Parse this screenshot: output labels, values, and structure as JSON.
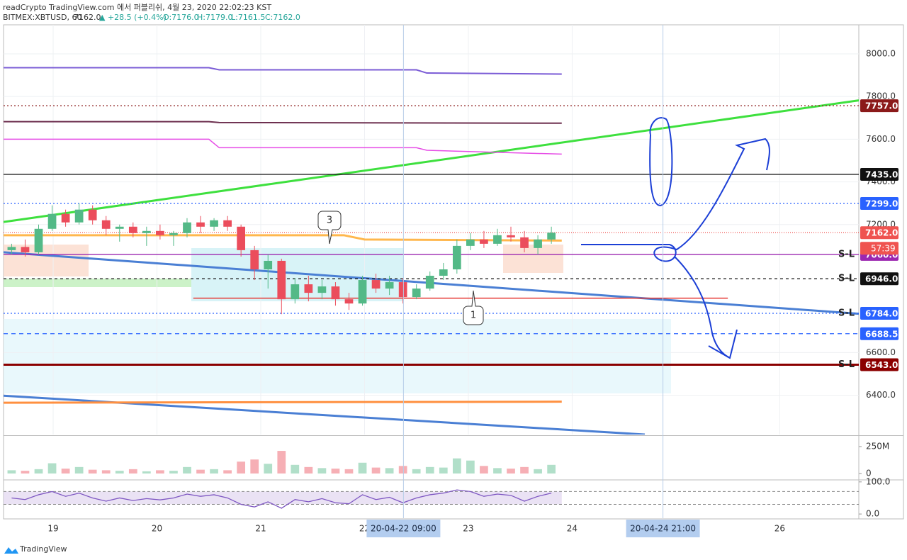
{
  "header": {
    "publisher": "readCrypto TradingView.com 에서 퍼블리쉬, 4월 23, 2020 22:02:23 KST",
    "symbol": "BITMEX:XBTUSD, 60",
    "last": "7162.0",
    "change": "▲ +28.5 (+0.4%)",
    "ohlc": [
      "O:7176.0",
      "H:7179.0",
      "L:7161.5",
      "C:7162.0"
    ]
  },
  "chart_data": {
    "type": "candlestick",
    "xlim": [
      18.522,
      26.762
    ],
    "xticks": [
      19,
      20,
      21,
      22,
      23,
      24,
      26
    ],
    "ylim": [
      6216,
      8136
    ],
    "yticks": [
      {
        "value": 8000,
        "label": "8000.0"
      },
      {
        "value": 7800,
        "label": "7800.0"
      },
      {
        "value": 7600,
        "label": "7600.0"
      },
      {
        "value": 7400,
        "label": "7400.0"
      },
      {
        "value": 7200,
        "label": "7200.0"
      },
      {
        "value": 6600,
        "label": "6600.0"
      },
      {
        "value": 6400,
        "label": "6400.0"
      }
    ],
    "grid": true,
    "up_color": "#53b987",
    "down_color": "#eb4d5c",
    "x": [
      18.6,
      18.73,
      18.86,
      18.99,
      19.12,
      19.25,
      19.38,
      19.51,
      19.64,
      19.77,
      19.9,
      20.03,
      20.16,
      20.29,
      20.42,
      20.55,
      20.68,
      20.81,
      20.94,
      21.07,
      21.2,
      21.33,
      21.46,
      21.59,
      21.72,
      21.85,
      21.98,
      22.11,
      22.24,
      22.37,
      22.5,
      22.63,
      22.76,
      22.89,
      23.02,
      23.15,
      23.28,
      23.41,
      23.54,
      23.67,
      23.8
    ],
    "open": [
      7080,
      7095,
      7070,
      7180,
      7250,
      7210,
      7270,
      7220,
      7180,
      7190,
      7160,
      7170,
      7150,
      7160,
      7210,
      7190,
      7220,
      7190,
      7080,
      6990,
      7030,
      6850,
      6920,
      6880,
      6910,
      6850,
      6830,
      6940,
      6900,
      6930,
      6860,
      6900,
      6960,
      6990,
      7100,
      7130,
      7110,
      7150,
      7140,
      7090,
      7130
    ],
    "high": [
      7110,
      7130,
      7200,
      7290,
      7270,
      7300,
      7290,
      7240,
      7200,
      7210,
      7190,
      7200,
      7170,
      7230,
      7240,
      7230,
      7240,
      7200,
      7100,
      7060,
      7040,
      6950,
      6960,
      6940,
      6930,
      6880,
      6960,
      6970,
      6960,
      6950,
      6920,
      6980,
      7020,
      7130,
      7160,
      7170,
      7180,
      7190,
      7170,
      7150,
      7190
    ],
    "low": [
      7060,
      7050,
      7060,
      7170,
      7190,
      7200,
      7200,
      7150,
      7120,
      7140,
      7100,
      7130,
      7100,
      7140,
      7160,
      7170,
      7170,
      7050,
      6940,
      6900,
      6780,
      6830,
      6840,
      6850,
      6820,
      6800,
      6820,
      6880,
      6870,
      6830,
      6850,
      6890,
      6940,
      6970,
      7080,
      7090,
      7100,
      7120,
      7070,
      7060,
      7110
    ],
    "close": [
      7095,
      7070,
      7180,
      7250,
      7210,
      7270,
      7220,
      7180,
      7190,
      7160,
      7170,
      7150,
      7160,
      7210,
      7190,
      7220,
      7190,
      7080,
      6990,
      7030,
      6850,
      6920,
      6880,
      6910,
      6850,
      6830,
      6940,
      6900,
      6930,
      6860,
      6900,
      6960,
      6990,
      7100,
      7130,
      7110,
      7150,
      7140,
      7090,
      7130,
      7162
    ],
    "volume": [
      30,
      25,
      40,
      95,
      45,
      60,
      35,
      30,
      25,
      40,
      20,
      30,
      25,
      60,
      35,
      40,
      30,
      110,
      130,
      90,
      210,
      80,
      60,
      50,
      45,
      40,
      100,
      55,
      50,
      70,
      40,
      60,
      55,
      140,
      120,
      70,
      50,
      45,
      60,
      40,
      80
    ],
    "volume_lim": [
      -53,
      342
    ],
    "volume_ticks": [
      {
        "value": 250,
        "label": "250M"
      },
      0
    ],
    "rsi": [
      50,
      45,
      60,
      70,
      55,
      65,
      50,
      40,
      50,
      42,
      48,
      44,
      50,
      62,
      55,
      60,
      50,
      30,
      22,
      38,
      18,
      45,
      38,
      48,
      35,
      32,
      60,
      45,
      52,
      35,
      50,
      60,
      65,
      75,
      70,
      55,
      62,
      58,
      40,
      55,
      65
    ],
    "rsi_lim": [
      -13,
      104
    ],
    "rsi_ticks": [
      {
        "value": 100,
        "label": "100.0"
      },
      {
        "value": 0,
        "label": "0.0"
      }
    ],
    "rsi_band": [
      30,
      70
    ],
    "levels": [
      {
        "value": 7757,
        "label": "7757.0",
        "color": "#8b1a1a",
        "dash": "2,3"
      },
      {
        "value": 7435,
        "label": "7435.0",
        "color": "#111111",
        "dash": ""
      },
      {
        "value": 7299,
        "label": "7299.0",
        "color": "#2962ff",
        "dash": "2,3"
      },
      {
        "value": 7162,
        "label": "7162.0",
        "color": "#ef5350",
        "dash": "1,2"
      },
      {
        "value": 7060,
        "label": "7060.0",
        "color": "#9c27b0",
        "dash": "",
        "tag": "S-L"
      },
      {
        "value": 6946,
        "label": "6946.0",
        "color": "#111111",
        "dash": "4,4",
        "tag": "S-L"
      },
      {
        "value": 6784,
        "label": "6784.0",
        "color": "#2962ff",
        "dash": "2,3",
        "tag": "S-L"
      },
      {
        "value": 6688.5,
        "label": "6688.5",
        "color": "#2962ff",
        "dash": "6,5"
      },
      {
        "value": 6543,
        "label": "6543.0",
        "color": "#8b0000",
        "dash": "",
        "tag": "S-L"
      }
    ],
    "countdown": "57:39",
    "lines": [
      {
        "color": "#3ee03e",
        "width": 3,
        "x": [
          18.522,
          26.762
        ],
        "values": [
          7212,
          7782
        ]
      },
      {
        "color": "#4a7fd4",
        "width": 3,
        "x": [
          18.522,
          26.762
        ],
        "values": [
          7070,
          6782
        ]
      },
      {
        "color": "#4a7fd4",
        "width": 3,
        "x": [
          18.522,
          24.7
        ],
        "values": [
          6398,
          6216
        ]
      },
      {
        "color": "#7b5cd6",
        "width": 2,
        "x": [
          18.522,
          20.5,
          20.6,
          22.5,
          22.6,
          23.9
        ],
        "values": [
          7935,
          7935,
          7925,
          7925,
          7910,
          7905
        ]
      },
      {
        "color": "#6d2f4f",
        "width": 2,
        "x": [
          18.522,
          20.5,
          20.6,
          23.9
        ],
        "values": [
          7682,
          7682,
          7678,
          7675
        ]
      },
      {
        "color": "#e64ce6",
        "width": 1.5,
        "x": [
          18.522,
          20.5,
          20.6,
          22.5,
          22.6,
          23.9
        ],
        "values": [
          7600,
          7600,
          7560,
          7560,
          7548,
          7530
        ]
      },
      {
        "color": "#ff9040",
        "width": 3,
        "x": [
          18.522,
          23.9
        ],
        "values": [
          6365,
          6370
        ]
      },
      {
        "color": "#e53935",
        "width": 1.5,
        "x": [
          20.35,
          25.5
        ],
        "values": [
          6855,
          6855
        ]
      },
      {
        "color": "#ffb74d",
        "width": 3,
        "x": [
          18.522,
          21.8,
          22.0,
          23.9
        ],
        "values": [
          7150,
          7150,
          7130,
          7125
        ]
      }
    ],
    "crosshairs": [
      {
        "x": 22.375,
        "label": "20-04-22  09:00"
      },
      {
        "x": 24.875,
        "label": "20-04-24  21:00"
      }
    ],
    "annotations": [
      "3",
      "1"
    ]
  },
  "footer": {
    "brand": "TradingView"
  }
}
